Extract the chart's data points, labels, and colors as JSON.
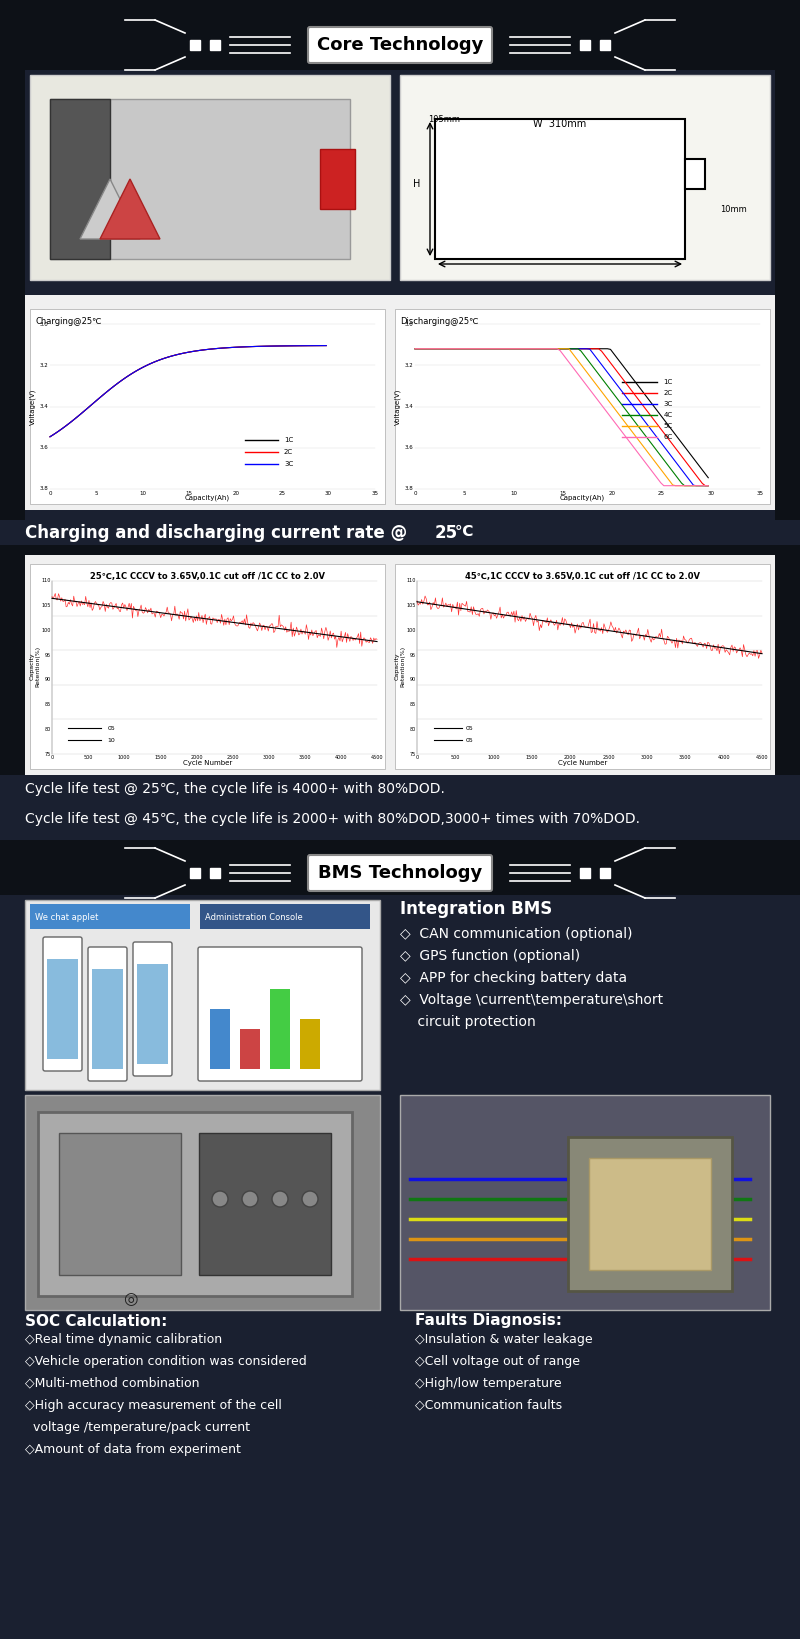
{
  "bg_color": "#0d1117",
  "section1_title": "Core Technology",
  "section2_title": "BMS Technology",
  "text_color_white": "#ffffff",
  "text_color_black": "#000000",
  "banner_bg": "#ffffff",
  "accent_color": "#c0c0c0",
  "section1_text1": "Charging and discharging current rate @ 25℃",
  "cycle_text1": "Cycle life test @ 25℃, the cycle life is 4000+ with 80%DOD.",
  "cycle_text2": "Cycle life test @ 45℃, the cycle life is 2000+ with 80%DOD,3000+ times with 70%DOD.",
  "bms_bullets": [
    "Integration BMS",
    "◇  CAN communication (optional)",
    "◇  GPS function (optional)",
    "◇  APP for checking battery data",
    "◇  Voltage \\current\\temperature\\short",
    "     circuit protection"
  ],
  "soc_title": "SOC Calculation:",
  "soc_bullets": [
    "◇Real time dynamic calibration",
    "◇Vehicle operation condition was considered",
    "◇Multi-method combination",
    "◇High accuracy measurement of the cell",
    "  voltage /temperature/pack current",
    "◇Amount of data from experiment"
  ],
  "fault_title": "Faults Diagnosis:",
  "fault_bullets": [
    "◇Insulation & water leakage",
    "◇Cell voltage out of range",
    "◇High/low temperature",
    "◇Communication faults"
  ]
}
